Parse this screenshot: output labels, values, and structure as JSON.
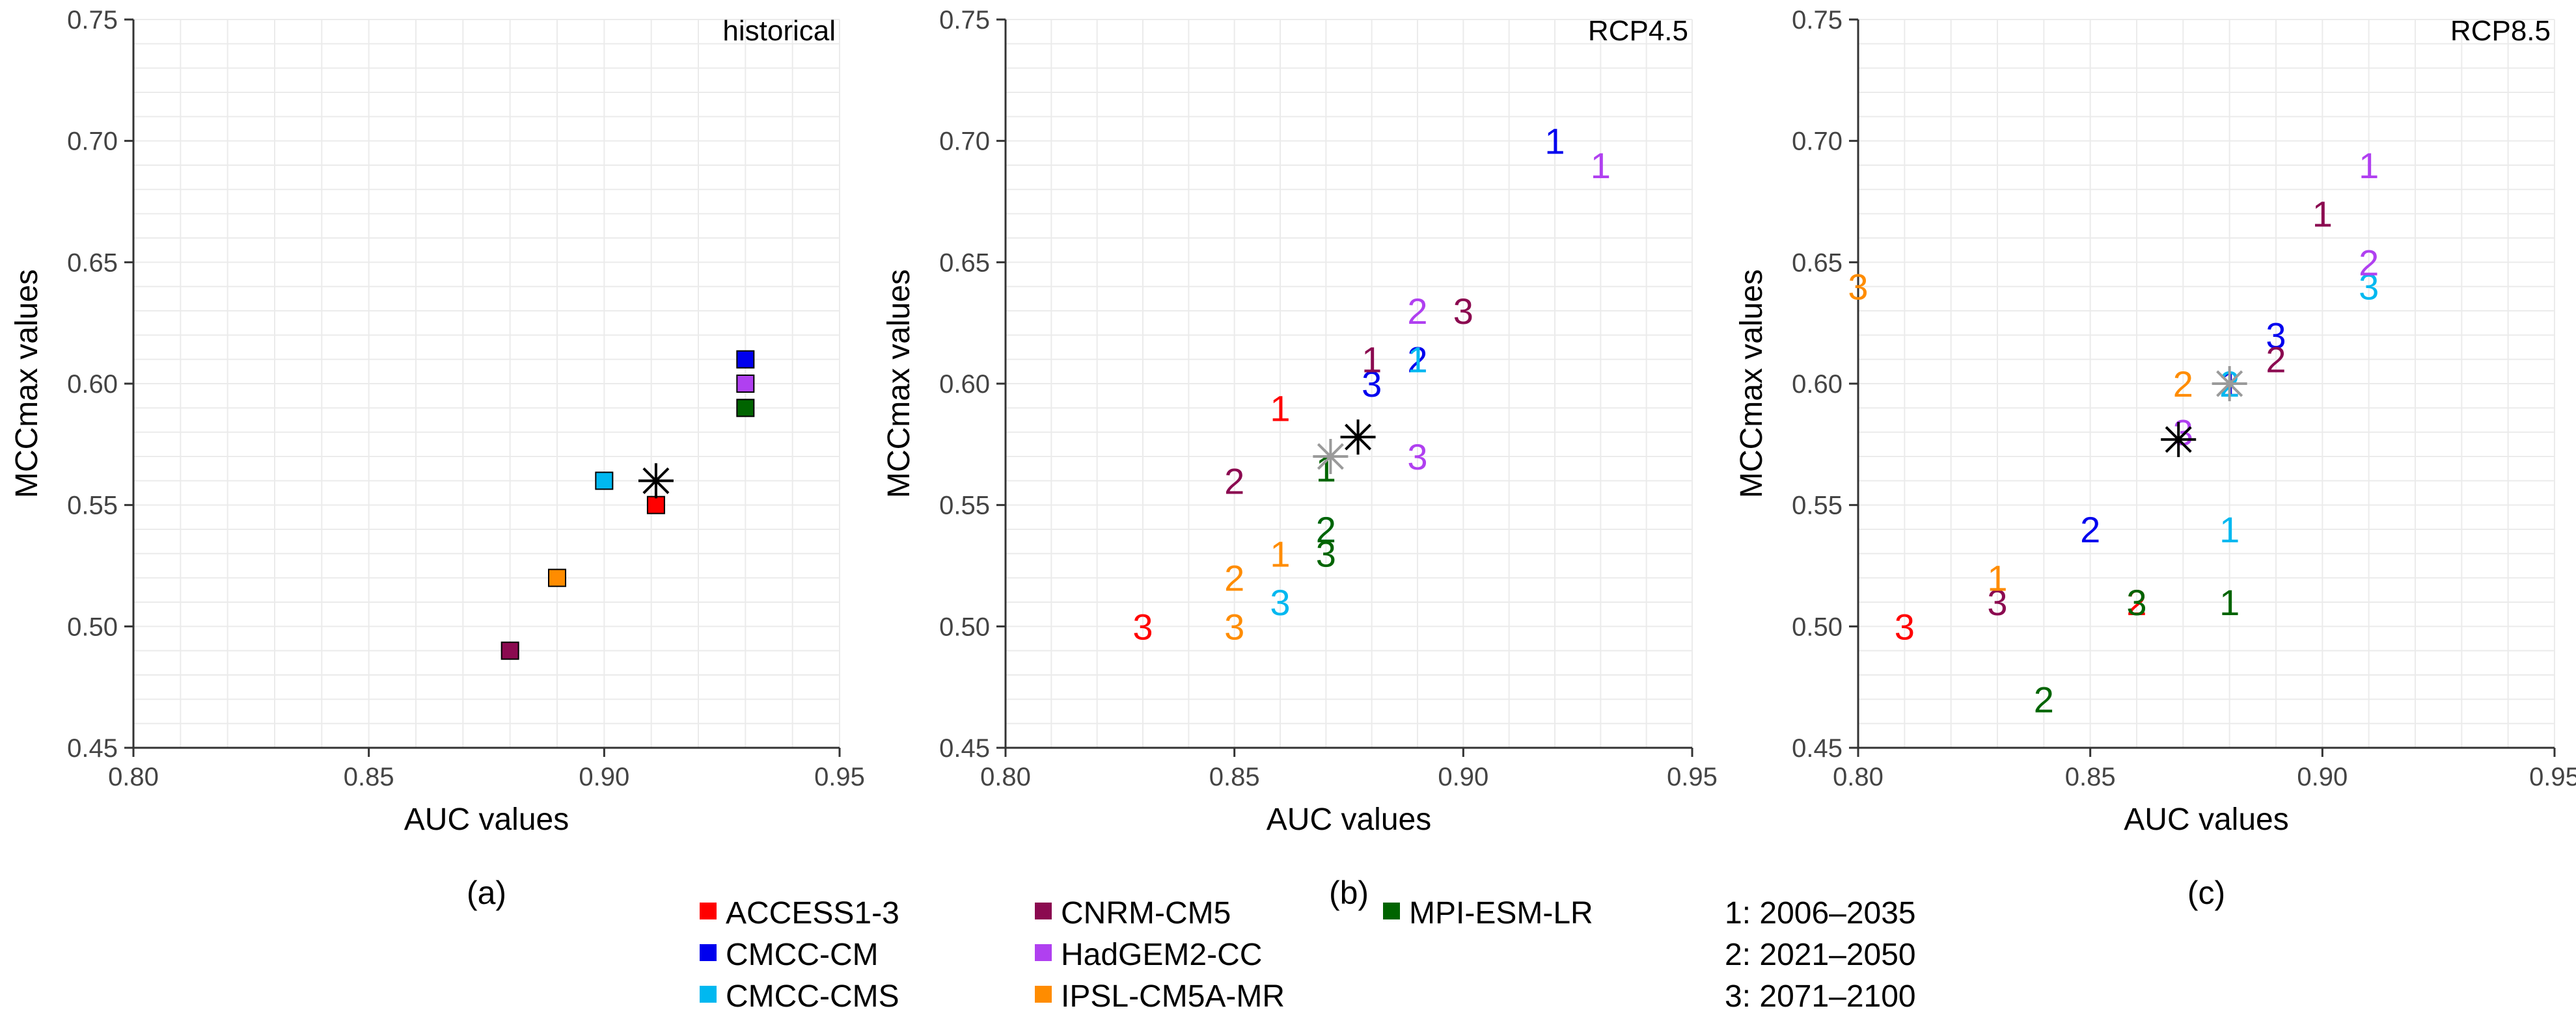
{
  "chart_data": [
    {
      "type": "scatter",
      "title": "historical",
      "panel_label": "(a)",
      "xlabel": "AUC values",
      "ylabel": "MCCmax values",
      "xlim": [
        0.8,
        0.95
      ],
      "ylim": [
        0.45,
        0.75
      ],
      "xticks": [
        "0.80",
        "0.85",
        "0.90",
        "0.95"
      ],
      "yticks": [
        "0.45",
        "0.50",
        "0.55",
        "0.60",
        "0.65",
        "0.70",
        "0.75"
      ],
      "grid": true,
      "points": [
        {
          "model": "ACCESS1-3",
          "x": 0.911,
          "y": 0.55
        },
        {
          "model": "CMCC-CM",
          "x": 0.93,
          "y": 0.61
        },
        {
          "model": "CMCC-CMS",
          "x": 0.9,
          "y": 0.56
        },
        {
          "model": "CNRM-CM5",
          "x": 0.88,
          "y": 0.49
        },
        {
          "model": "HadGEM2-CC",
          "x": 0.93,
          "y": 0.6
        },
        {
          "model": "IPSL-CM5A-MR",
          "x": 0.89,
          "y": 0.52
        },
        {
          "model": "MPI-ESM-LR",
          "x": 0.93,
          "y": 0.59
        }
      ],
      "ensemble_mean": [
        {
          "x": 0.911,
          "y": 0.56,
          "color": "#000000"
        }
      ]
    },
    {
      "type": "scatter",
      "title": "RCP4.5",
      "panel_label": "(b)",
      "xlabel": "AUC values",
      "ylabel": "MCCmax values",
      "xlim": [
        0.8,
        0.95
      ],
      "ylim": [
        0.45,
        0.75
      ],
      "xticks": [
        "0.80",
        "0.85",
        "0.90",
        "0.95"
      ],
      "yticks": [
        "0.45",
        "0.50",
        "0.55",
        "0.60",
        "0.65",
        "0.70",
        "0.75"
      ],
      "grid": true,
      "points": [
        {
          "model": "ACCESS1-3",
          "period": "1",
          "x": 0.86,
          "y": 0.59
        },
        {
          "model": "ACCESS1-3",
          "period": "3",
          "x": 0.83,
          "y": 0.5
        },
        {
          "model": "CMCC-CM",
          "period": "1",
          "x": 0.92,
          "y": 0.7
        },
        {
          "model": "CMCC-CM",
          "period": "2",
          "x": 0.89,
          "y": 0.61
        },
        {
          "model": "CMCC-CM",
          "period": "3",
          "x": 0.88,
          "y": 0.6
        },
        {
          "model": "CMCC-CMS",
          "period": "1",
          "x": 0.89,
          "y": 0.61
        },
        {
          "model": "CMCC-CMS",
          "period": "2",
          "x": 0.87,
          "y": 0.54
        },
        {
          "model": "CMCC-CMS",
          "period": "3",
          "x": 0.86,
          "y": 0.51
        },
        {
          "model": "CNRM-CM5",
          "period": "1",
          "x": 0.88,
          "y": 0.61
        },
        {
          "model": "CNRM-CM5",
          "period": "2",
          "x": 0.85,
          "y": 0.56
        },
        {
          "model": "CNRM-CM5",
          "period": "3",
          "x": 0.9,
          "y": 0.63
        },
        {
          "model": "HadGEM2-CC",
          "period": "1",
          "x": 0.93,
          "y": 0.69
        },
        {
          "model": "HadGEM2-CC",
          "period": "2",
          "x": 0.89,
          "y": 0.63
        },
        {
          "model": "HadGEM2-CC",
          "period": "3",
          "x": 0.89,
          "y": 0.57
        },
        {
          "model": "IPSL-CM5A-MR",
          "period": "1",
          "x": 0.86,
          "y": 0.53
        },
        {
          "model": "IPSL-CM5A-MR",
          "period": "2",
          "x": 0.85,
          "y": 0.52
        },
        {
          "model": "IPSL-CM5A-MR",
          "period": "3",
          "x": 0.85,
          "y": 0.5
        },
        {
          "model": "MPI-ESM-LR",
          "period": "1",
          "x": 0.87,
          "y": 0.565
        },
        {
          "model": "MPI-ESM-LR",
          "period": "2",
          "x": 0.87,
          "y": 0.54
        },
        {
          "model": "MPI-ESM-LR",
          "period": "3",
          "x": 0.87,
          "y": 0.53
        }
      ],
      "ensemble_mean": [
        {
          "x": 0.871,
          "y": 0.57,
          "color": "#9a9a9a"
        },
        {
          "x": 0.877,
          "y": 0.578,
          "color": "#000000"
        }
      ]
    },
    {
      "type": "scatter",
      "title": "RCP8.5",
      "panel_label": "(c)",
      "xlabel": "AUC values",
      "ylabel": "MCCmax values",
      "xlim": [
        0.8,
        0.95
      ],
      "ylim": [
        0.45,
        0.75
      ],
      "xticks": [
        "0.80",
        "0.85",
        "0.90",
        "0.95"
      ],
      "yticks": [
        "0.45",
        "0.50",
        "0.55",
        "0.60",
        "0.65",
        "0.70",
        "0.75"
      ],
      "grid": true,
      "points": [
        {
          "model": "ACCESS1-3",
          "period": "1",
          "x": 0.88,
          "y": 0.6
        },
        {
          "model": "ACCESS1-3",
          "period": "2",
          "x": 0.86,
          "y": 0.51
        },
        {
          "model": "ACCESS1-3",
          "period": "3",
          "x": 0.81,
          "y": 0.5
        },
        {
          "model": "CMCC-CM",
          "period": "1",
          "x": 0.88,
          "y": 0.6
        },
        {
          "model": "CMCC-CM",
          "period": "2",
          "x": 0.85,
          "y": 0.54
        },
        {
          "model": "CMCC-CM",
          "period": "3",
          "x": 0.89,
          "y": 0.62
        },
        {
          "model": "CMCC-CMS",
          "period": "1",
          "x": 0.88,
          "y": 0.54
        },
        {
          "model": "CMCC-CMS",
          "period": "2",
          "x": 0.88,
          "y": 0.6
        },
        {
          "model": "CMCC-CMS",
          "period": "3",
          "x": 0.91,
          "y": 0.64
        },
        {
          "model": "CNRM-CM5",
          "period": "1",
          "x": 0.9,
          "y": 0.67
        },
        {
          "model": "CNRM-CM5",
          "period": "2",
          "x": 0.89,
          "y": 0.61
        },
        {
          "model": "CNRM-CM5",
          "period": "3",
          "x": 0.83,
          "y": 0.51
        },
        {
          "model": "HadGEM2-CC",
          "period": "1",
          "x": 0.91,
          "y": 0.69
        },
        {
          "model": "HadGEM2-CC",
          "period": "2",
          "x": 0.91,
          "y": 0.65
        },
        {
          "model": "HadGEM2-CC",
          "period": "3",
          "x": 0.87,
          "y": 0.58
        },
        {
          "model": "IPSL-CM5A-MR",
          "period": "1",
          "x": 0.83,
          "y": 0.52
        },
        {
          "model": "IPSL-CM5A-MR",
          "period": "2",
          "x": 0.87,
          "y": 0.6
        },
        {
          "model": "IPSL-CM5A-MR",
          "period": "3",
          "x": 0.8,
          "y": 0.64
        },
        {
          "model": "MPI-ESM-LR",
          "period": "1",
          "x": 0.88,
          "y": 0.51
        },
        {
          "model": "MPI-ESM-LR",
          "period": "2",
          "x": 0.84,
          "y": 0.47
        },
        {
          "model": "MPI-ESM-LR",
          "period": "3",
          "x": 0.86,
          "y": 0.51
        }
      ],
      "ensemble_mean": [
        {
          "x": 0.88,
          "y": 0.6,
          "color": "#9a9a9a"
        },
        {
          "x": 0.869,
          "y": 0.577,
          "color": "#000000"
        }
      ]
    }
  ],
  "legend": {
    "models": [
      {
        "name": "ACCESS1-3",
        "color": "#ff0000"
      },
      {
        "name": "CMCC-CM",
        "color": "#0000ee"
      },
      {
        "name": "CMCC-CMS",
        "color": "#00b8f0"
      },
      {
        "name": "CNRM-CM5",
        "color": "#8b0a50"
      },
      {
        "name": "HadGEM2-CC",
        "color": "#b040f0"
      },
      {
        "name": "IPSL-CM5A-MR",
        "color": "#ff8c00"
      },
      {
        "name": "MPI-ESM-LR",
        "color": "#006400"
      }
    ],
    "periods": [
      "1: 2006–2035",
      "2: 2021–2050",
      "3: 2071–2100"
    ]
  }
}
